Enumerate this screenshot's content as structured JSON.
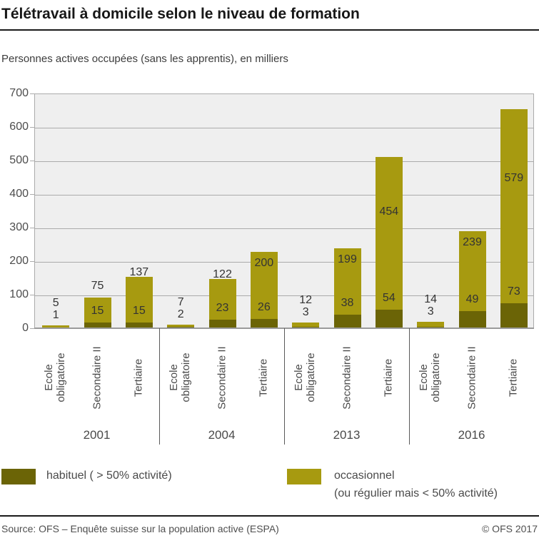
{
  "header": {
    "title": "Télétravail à domicile selon le niveau de formation",
    "subtitle": "Personnes actives occupées (sans les apprentis), en milliers"
  },
  "chart_data": {
    "type": "bar",
    "stacked": true,
    "title": "Télétravail à domicile selon le niveau de formation",
    "unit_label": "en milliers",
    "groups": [
      "2001",
      "2004",
      "2013",
      "2016"
    ],
    "categories": [
      "Ecole obligatoire",
      "Secondaire II",
      "Tertiaire"
    ],
    "category_lines": [
      [
        "Ecole",
        "obligatoire"
      ],
      [
        "Secondaire II"
      ],
      [
        "Tertiaire"
      ]
    ],
    "series": [
      {
        "name": "habituel ( > 50% activité)",
        "color": "#6b6406",
        "values": {
          "2001": [
            1,
            15,
            15
          ],
          "2004": [
            2,
            23,
            26
          ],
          "2013": [
            3,
            38,
            54
          ],
          "2016": [
            3,
            49,
            73
          ]
        }
      },
      {
        "name": "occasionnel (ou régulier mais < 50% activité)",
        "color": "#a79a10",
        "values": {
          "2001": [
            5,
            75,
            137
          ],
          "2004": [
            7,
            122,
            200
          ],
          "2013": [
            12,
            199,
            454
          ],
          "2016": [
            14,
            239,
            579
          ]
        }
      }
    ],
    "ylim": [
      0,
      700
    ],
    "yticks": [
      0,
      100,
      200,
      300,
      400,
      500,
      600,
      700
    ],
    "grid": true,
    "legend_position": "bottom",
    "plot_bg": "#efefef"
  },
  "legend": {
    "items": [
      {
        "id": "habituel",
        "label": "habituel ( > 50% activité)",
        "color": "#6b6406"
      },
      {
        "id": "occasionnel",
        "label": "occasionnel",
        "label2": "(ou régulier mais < 50% activité)",
        "color": "#a79a10"
      }
    ]
  },
  "footer": {
    "source": "Source: OFS – Enquête suisse sur la population active (ESPA)",
    "copyright": "© OFS 2017"
  },
  "colors": {
    "habituel": "#6b6406",
    "occasionnel": "#a79a10",
    "plot_bg": "#efefef",
    "grid": "#ababab",
    "axis_text": "#4a4a4a",
    "bar_label_text": "#333333"
  }
}
